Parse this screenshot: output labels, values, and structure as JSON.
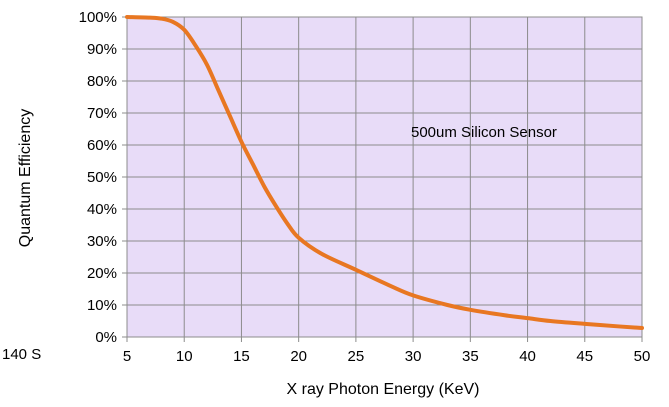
{
  "side_label": "140 S",
  "chart_data": {
    "type": "line",
    "xlabel": "X ray Photon Energy (KeV)",
    "ylabel": "Quantum Efficiency",
    "annotation": "500um Silicon Sensor",
    "xlim": [
      5,
      50
    ],
    "ylim": [
      0,
      100
    ],
    "x_ticks": [
      "5",
      "10",
      "15",
      "20",
      "25",
      "30",
      "35",
      "40",
      "45",
      "50"
    ],
    "y_ticks": [
      "0%",
      "10%",
      "20%",
      "30%",
      "40%",
      "50%",
      "60%",
      "70%",
      "80%",
      "90%",
      "100%"
    ],
    "grid": true,
    "plot_background": "#e8dcf8",
    "grid_color": "#8c8c8c",
    "series": [
      {
        "color": "#e87722",
        "x": [
          5,
          7,
          8,
          9,
          10,
          11,
          12,
          13,
          14,
          15,
          16,
          17,
          18,
          19,
          20,
          22,
          25,
          28,
          30,
          33,
          35,
          38,
          40,
          42,
          45,
          48,
          50
        ],
        "y": [
          100,
          99.8,
          99.5,
          98.5,
          96,
          91,
          85,
          77,
          69,
          61,
          54,
          47,
          41,
          35.5,
          31,
          26,
          21,
          16,
          13,
          10,
          8.5,
          6.8,
          5.9,
          5,
          4.1,
          3.3,
          2.8
        ]
      }
    ]
  }
}
